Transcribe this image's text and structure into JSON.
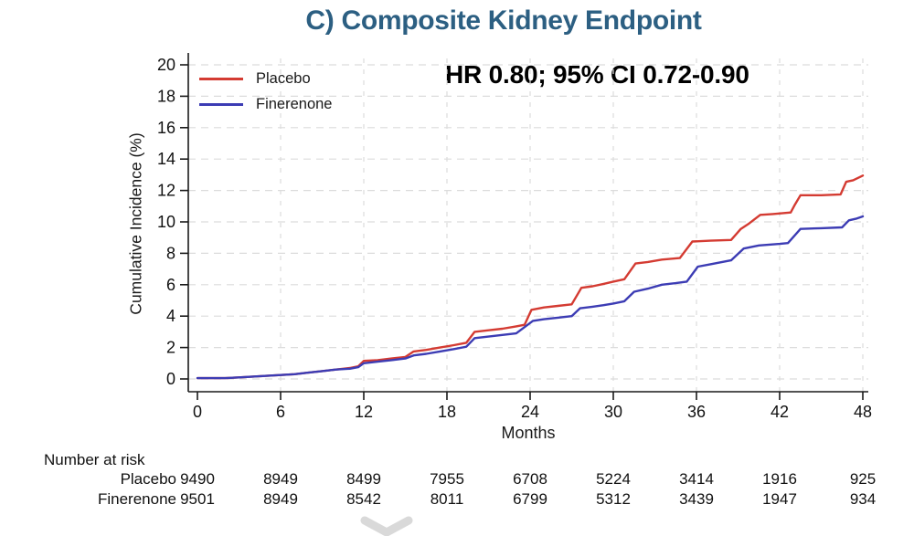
{
  "title": "C) Composite Kidney Endpoint",
  "annotation": "HR 0.80; 95% CI 0.72-0.90",
  "colors": {
    "title_blue": "#2c5f82",
    "placebo_red": "#d43b32",
    "finerenone_blue": "#3c3cb4",
    "grid_gray": "#dcdcdc",
    "axis_black": "#1a1a1a",
    "watermark_gray": "#cccccc"
  },
  "legend": [
    {
      "label": "Placebo",
      "color": "#d43b32"
    },
    {
      "label": "Finerenone",
      "color": "#3c3cb4"
    }
  ],
  "chart_data": {
    "type": "line",
    "title": "C) Composite Kidney Endpoint",
    "xlabel": "Months",
    "ylabel": "Cumulative Incidence (%)",
    "xlim": [
      0,
      48
    ],
    "ylim": [
      0,
      20
    ],
    "x_ticks": [
      0,
      6,
      12,
      18,
      24,
      30,
      36,
      42,
      48
    ],
    "y_ticks": [
      0,
      2,
      4,
      6,
      8,
      10,
      12,
      14,
      16,
      18,
      20
    ],
    "grid": "dashed",
    "legend_position": "top-left",
    "series": [
      {
        "name": "Placebo",
        "color": "#d43b32",
        "points": [
          [
            0,
            0.05
          ],
          [
            2,
            0.05
          ],
          [
            3,
            0.1
          ],
          [
            4,
            0.15
          ],
          [
            5,
            0.2
          ],
          [
            6,
            0.25
          ],
          [
            7,
            0.3
          ],
          [
            8,
            0.4
          ],
          [
            9,
            0.5
          ],
          [
            10,
            0.6
          ],
          [
            11,
            0.7
          ],
          [
            11.6,
            0.8
          ],
          [
            12,
            1.15
          ],
          [
            13,
            1.2
          ],
          [
            14,
            1.3
          ],
          [
            15,
            1.4
          ],
          [
            15.6,
            1.75
          ],
          [
            16.5,
            1.85
          ],
          [
            17.5,
            2.0
          ],
          [
            18.5,
            2.15
          ],
          [
            19.4,
            2.3
          ],
          [
            20,
            3.0
          ],
          [
            21,
            3.1
          ],
          [
            22,
            3.2
          ],
          [
            23,
            3.35
          ],
          [
            23.6,
            3.45
          ],
          [
            24.1,
            4.4
          ],
          [
            25,
            4.55
          ],
          [
            26,
            4.65
          ],
          [
            27,
            4.75
          ],
          [
            27.7,
            5.8
          ],
          [
            28.5,
            5.9
          ],
          [
            29.3,
            6.05
          ],
          [
            30,
            6.2
          ],
          [
            30.8,
            6.35
          ],
          [
            31.6,
            7.35
          ],
          [
            32.5,
            7.45
          ],
          [
            33.5,
            7.6
          ],
          [
            34.8,
            7.7
          ],
          [
            35.7,
            8.75
          ],
          [
            37,
            8.8
          ],
          [
            38.5,
            8.85
          ],
          [
            39.2,
            9.55
          ],
          [
            39.8,
            9.9
          ],
          [
            40.6,
            10.45
          ],
          [
            41.5,
            10.5
          ],
          [
            42.8,
            10.6
          ],
          [
            43.1,
            11.1
          ],
          [
            43.5,
            11.7
          ],
          [
            45,
            11.7
          ],
          [
            46.4,
            11.75
          ],
          [
            46.8,
            12.55
          ],
          [
            47.3,
            12.65
          ],
          [
            48,
            12.95
          ]
        ]
      },
      {
        "name": "Finerenone",
        "color": "#3c3cb4",
        "points": [
          [
            0,
            0.05
          ],
          [
            2,
            0.05
          ],
          [
            3,
            0.1
          ],
          [
            4,
            0.15
          ],
          [
            5,
            0.2
          ],
          [
            6,
            0.25
          ],
          [
            7,
            0.3
          ],
          [
            8,
            0.4
          ],
          [
            9,
            0.5
          ],
          [
            10,
            0.6
          ],
          [
            11,
            0.65
          ],
          [
            11.6,
            0.75
          ],
          [
            12,
            1.0
          ],
          [
            13,
            1.1
          ],
          [
            14,
            1.2
          ],
          [
            15,
            1.3
          ],
          [
            15.6,
            1.5
          ],
          [
            16.5,
            1.6
          ],
          [
            17.5,
            1.75
          ],
          [
            18.5,
            1.9
          ],
          [
            19.4,
            2.05
          ],
          [
            20,
            2.6
          ],
          [
            21,
            2.7
          ],
          [
            22,
            2.8
          ],
          [
            23,
            2.9
          ],
          [
            24.2,
            3.7
          ],
          [
            25,
            3.8
          ],
          [
            26,
            3.9
          ],
          [
            27,
            4.0
          ],
          [
            27.6,
            4.5
          ],
          [
            28.5,
            4.6
          ],
          [
            29.3,
            4.7
          ],
          [
            30,
            4.8
          ],
          [
            30.8,
            4.95
          ],
          [
            31.5,
            5.55
          ],
          [
            32.5,
            5.75
          ],
          [
            33.5,
            6.0
          ],
          [
            34.5,
            6.1
          ],
          [
            35.3,
            6.2
          ],
          [
            36.1,
            7.15
          ],
          [
            37,
            7.3
          ],
          [
            38.5,
            7.55
          ],
          [
            39.4,
            8.3
          ],
          [
            40.5,
            8.5
          ],
          [
            42,
            8.6
          ],
          [
            42.6,
            8.65
          ],
          [
            43.5,
            9.55
          ],
          [
            45,
            9.6
          ],
          [
            46.5,
            9.65
          ],
          [
            47,
            10.1
          ],
          [
            47.5,
            10.2
          ],
          [
            48,
            10.35
          ]
        ]
      }
    ]
  },
  "risk_table": {
    "header": "Number at risk",
    "months": [
      0,
      6,
      12,
      18,
      24,
      30,
      36,
      42,
      48
    ],
    "rows": [
      {
        "label": "Placebo",
        "values": [
          "9490",
          "8949",
          "8499",
          "7955",
          "6708",
          "5224",
          "3414",
          "1916",
          "925"
        ]
      },
      {
        "label": "Finerenone",
        "values": [
          "9501",
          "8949",
          "8542",
          "8011",
          "6799",
          "5312",
          "3439",
          "1947",
          "934"
        ]
      }
    ]
  }
}
